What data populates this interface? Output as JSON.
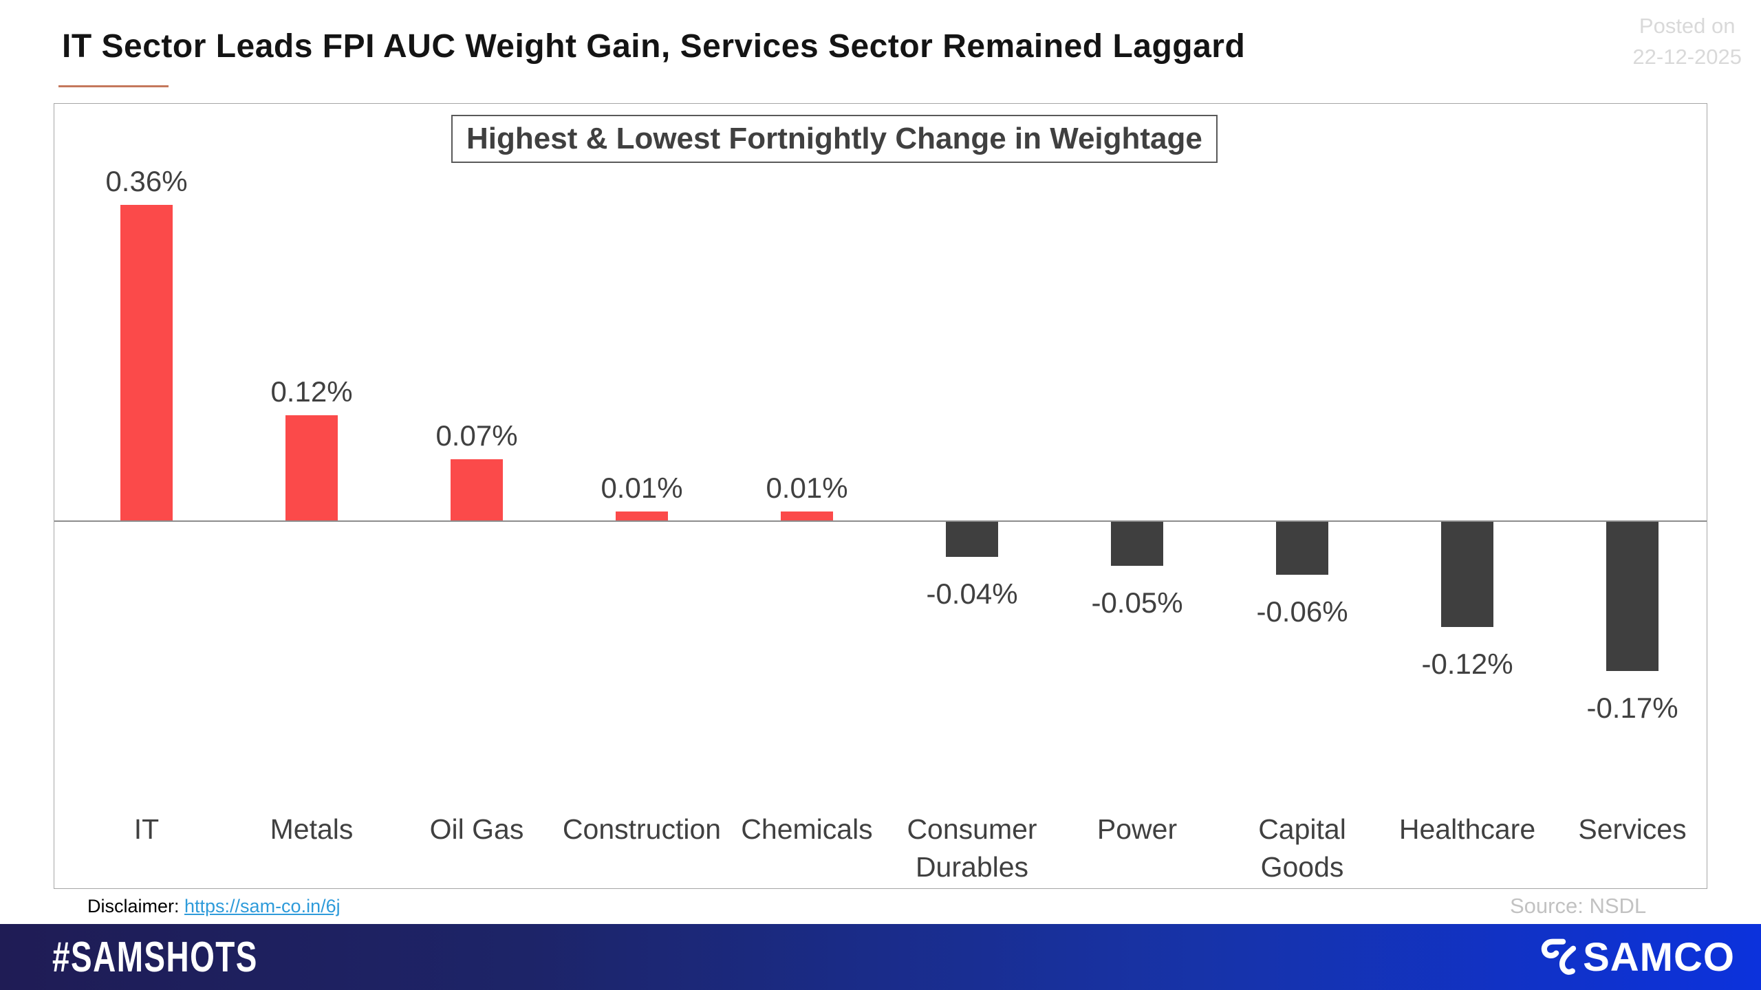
{
  "header": {
    "title": "IT Sector Leads FPI AUC Weight Gain, Services Sector Remained Laggard",
    "posted_on_label": "Posted on",
    "posted_on_date": "22-12-2025"
  },
  "chart_data": {
    "type": "bar",
    "title": "Highest & Lowest Fortnightly Change in Weightage",
    "categories": [
      "IT",
      "Metals",
      "Oil Gas",
      "Construction",
      "Chemicals",
      "Consumer Durables",
      "Power",
      "Capital Goods",
      "Healthcare",
      "Services"
    ],
    "values": [
      0.36,
      0.12,
      0.07,
      0.01,
      0.01,
      -0.04,
      -0.05,
      -0.06,
      -0.12,
      -0.17
    ],
    "labels": [
      "0.36%",
      "0.12%",
      "0.07%",
      "0.01%",
      "0.01%",
      "-0.04%",
      "-0.05%",
      "-0.06%",
      "-0.12%",
      "-0.17%"
    ],
    "unit": "%",
    "ylim": [
      -0.25,
      0.45
    ],
    "grid": false,
    "legend": false,
    "positive_color": "#fb4a4a",
    "negative_color": "#3f3f3f"
  },
  "colors": {
    "positive_bar": "#fb4a4a",
    "negative_bar": "#3f3f3f",
    "title_underline": "#c4785c",
    "link": "#2e9bda",
    "footer_gradient_start": "#1f1c55",
    "footer_gradient_end": "#0c32dc",
    "muted_gray": "#c2c2c2"
  },
  "footer_info": {
    "disclaimer_label": "Disclaimer: ",
    "disclaimer_link": "https://sam-co.in/6j",
    "source": "Source: NSDL"
  },
  "brand_bar": {
    "hashtag": "#SAMSHOTS",
    "brand": "SAMCO"
  }
}
